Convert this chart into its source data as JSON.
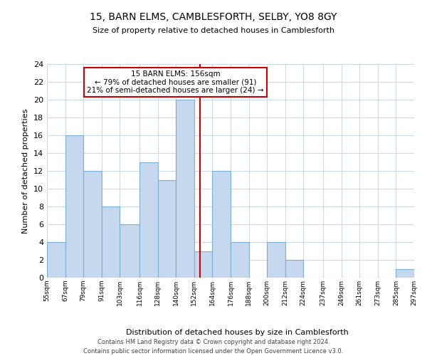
{
  "title": "15, BARN ELMS, CAMBLESFORTH, SELBY, YO8 8GY",
  "subtitle": "Size of property relative to detached houses in Camblesforth",
  "xlabel": "Distribution of detached houses by size in Camblesforth",
  "ylabel": "Number of detached properties",
  "bin_edges": [
    55,
    67,
    79,
    91,
    103,
    116,
    128,
    140,
    152,
    164,
    176,
    188,
    200,
    212,
    224,
    237,
    249,
    261,
    273,
    285,
    297
  ],
  "bin_labels": [
    "55sqm",
    "67sqm",
    "79sqm",
    "91sqm",
    "103sqm",
    "116sqm",
    "128sqm",
    "140sqm",
    "152sqm",
    "164sqm",
    "176sqm",
    "188sqm",
    "200sqm",
    "212sqm",
    "224sqm",
    "237sqm",
    "249sqm",
    "261sqm",
    "273sqm",
    "285sqm",
    "297sqm"
  ],
  "counts": [
    4,
    16,
    12,
    8,
    6,
    13,
    11,
    20,
    3,
    12,
    4,
    0,
    4,
    2,
    0,
    0,
    0,
    0,
    0,
    1
  ],
  "bar_color": "#c5d8ed",
  "bar_edge_color": "#7bafd4",
  "property_line_x": 156,
  "property_line_color": "#cc0000",
  "ylim": [
    0,
    24
  ],
  "yticks": [
    0,
    2,
    4,
    6,
    8,
    10,
    12,
    14,
    16,
    18,
    20,
    22,
    24
  ],
  "annotation_box_text": "15 BARN ELMS: 156sqm\n← 79% of detached houses are smaller (91)\n21% of semi-detached houses are larger (24) →",
  "annotation_box_color": "#cc0000",
  "footer_line1": "Contains HM Land Registry data © Crown copyright and database right 2024.",
  "footer_line2": "Contains public sector information licensed under the Open Government Licence v3.0.",
  "background_color": "#ffffff",
  "grid_color": "#c8d8e8"
}
